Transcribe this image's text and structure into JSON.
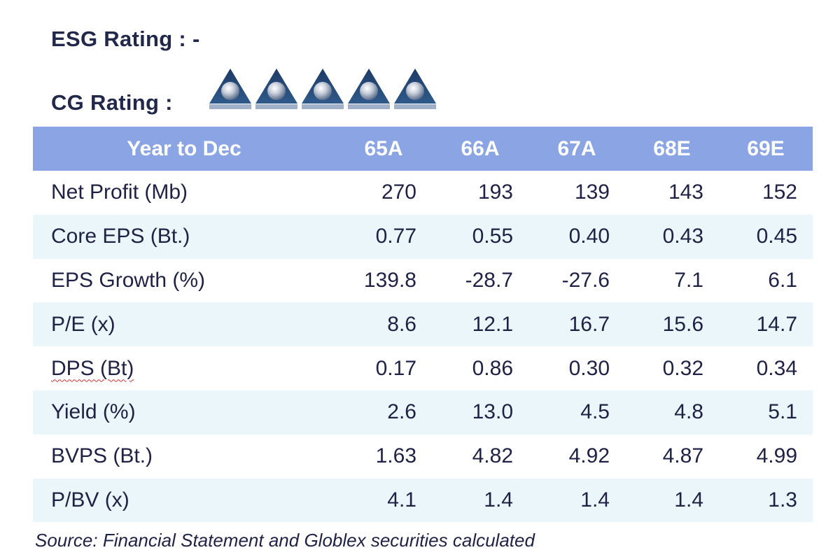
{
  "esg": {
    "text": "ESG Rating : -"
  },
  "cg": {
    "label": "CG Rating :",
    "icon_count": 5,
    "icon_name": "cg-rating-triangle-icon"
  },
  "table": {
    "headers": [
      "Year to Dec",
      "65A",
      "66A",
      "67A",
      "68E",
      "69E"
    ],
    "rows": [
      {
        "label": "Net Profit (Mb)",
        "values": [
          "270",
          "193",
          "139",
          "143",
          "152"
        ]
      },
      {
        "label": "Core EPS (Bt.)",
        "values": [
          "0.77",
          "0.55",
          "0.40",
          "0.43",
          "0.45"
        ]
      },
      {
        "label": "EPS Growth (%)",
        "values": [
          "139.8",
          "-28.7",
          "-27.6",
          "7.1",
          "6.1"
        ]
      },
      {
        "label": "P/E (x)",
        "values": [
          "8.6",
          "12.1",
          "16.7",
          "15.6",
          "14.7"
        ]
      },
      {
        "label": "DPS (Bt)",
        "values": [
          "0.17",
          "0.86",
          "0.30",
          "0.32",
          "0.34"
        ]
      },
      {
        "label": "Yield (%)",
        "values": [
          "2.6",
          "13.0",
          "4.5",
          "4.8",
          "5.1"
        ]
      },
      {
        "label": "BVPS (Bt.)",
        "values": [
          "1.63",
          "4.82",
          "4.92",
          "4.87",
          "4.99"
        ]
      },
      {
        "label": "P/BV (x)",
        "values": [
          "4.1",
          "1.4",
          "1.4",
          "1.4",
          "1.3"
        ]
      }
    ]
  },
  "source": {
    "text": "Source:  Financial Statement and Globlex securities calculated"
  },
  "colors": {
    "header_bg": "#8aa4e4",
    "row_shade": "#eaf6f9",
    "text": "#1f2244"
  }
}
